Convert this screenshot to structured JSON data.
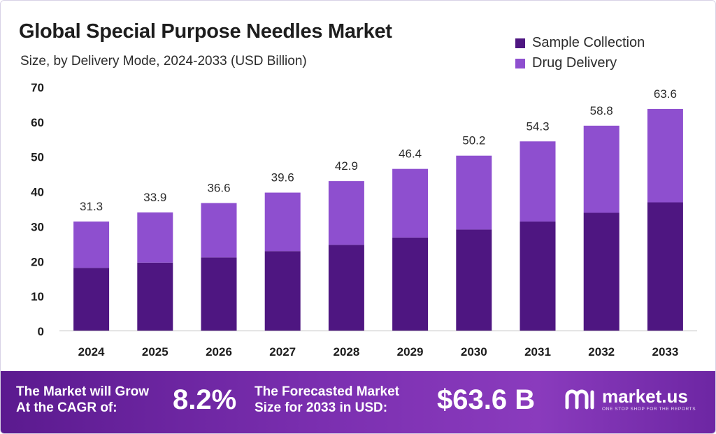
{
  "header": {
    "title": "Global Special Purpose Needles Market",
    "subtitle": "Size, by Delivery Mode, 2024-2033 (USD Billion)"
  },
  "colors": {
    "sample_collection": "#4e1681",
    "drug_delivery": "#8e4fcf",
    "axis": "#bdbdbd"
  },
  "chart_data": {
    "type": "bar",
    "stacked": true,
    "categories": [
      "2024",
      "2025",
      "2026",
      "2027",
      "2028",
      "2029",
      "2030",
      "2031",
      "2032",
      "2033"
    ],
    "series": [
      {
        "name": "Sample Collection",
        "values": [
          18.0,
          19.5,
          21.0,
          22.8,
          24.6,
          26.7,
          29.0,
          31.3,
          33.8,
          36.8
        ]
      },
      {
        "name": "Drug Delivery",
        "values": [
          13.3,
          14.4,
          15.6,
          16.8,
          18.3,
          19.7,
          21.2,
          23.0,
          25.0,
          26.8
        ]
      }
    ],
    "totals": [
      "31.3",
      "33.9",
      "36.6",
      "39.6",
      "42.9",
      "46.4",
      "50.2",
      "54.3",
      "58.8",
      "63.6"
    ],
    "yticks": [
      "0",
      "10",
      "20",
      "30",
      "40",
      "50",
      "60",
      "70"
    ],
    "ylim": [
      0,
      70
    ],
    "grid": false,
    "legend_position": "top-right"
  },
  "banner": {
    "cagr_label_line1": "The Market will Grow",
    "cagr_label_line2": "At the CAGR of:",
    "cagr_value": "8.2%",
    "forecast_label_line1": "The Forecasted Market",
    "forecast_label_line2": "Size for 2033 in USD:",
    "forecast_value": "$63.6 B"
  },
  "brand": {
    "name": "market.us",
    "tagline": "ONE STOP SHOP FOR THE REPORTS",
    "logo_icon": "market-us-logo-icon"
  }
}
